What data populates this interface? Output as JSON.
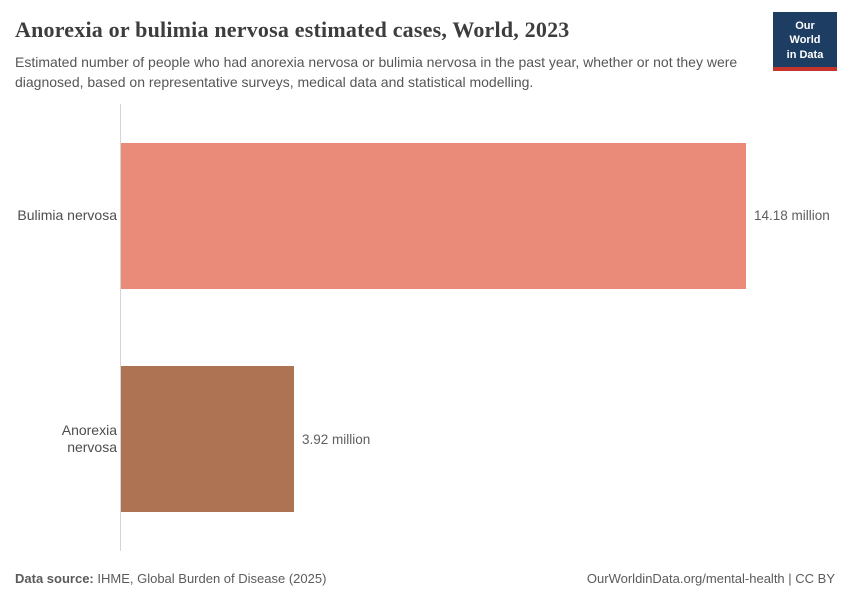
{
  "header": {
    "title": "Anorexia or bulimia nervosa estimated cases, World, 2023",
    "subtitle": "Estimated number of people who had anorexia nervosa or bulimia nervosa in the past year, whether or not they were diagnosed, based on representative surveys, medical data and statistical modelling.",
    "logo": {
      "line1": "Our World",
      "line2": "in Data",
      "bg_color": "#1d3d63",
      "accent_color": "#c4342c"
    }
  },
  "chart_data": {
    "type": "bar",
    "orientation": "horizontal",
    "title": "Anorexia or bulimia nervosa estimated cases, World, 2023",
    "categories": [
      "Bulimia nervosa",
      "Anorexia nervosa"
    ],
    "values": [
      14.18,
      3.92
    ],
    "value_labels": [
      "14.18 million",
      "3.92 million"
    ],
    "bar_colors": [
      "#ea8a78",
      "#ae7352"
    ],
    "unit": "million",
    "xlabel": "",
    "ylabel": "",
    "xlim": [
      0,
      14.18
    ],
    "grid": false,
    "legend": "none",
    "axis_color": "#d4d4d4"
  },
  "footer": {
    "datasource_label": "Data source:",
    "datasource_value": " IHME, Global Burden of Disease (2025)",
    "attribution": "OurWorldinData.org/mental-health | CC BY"
  }
}
